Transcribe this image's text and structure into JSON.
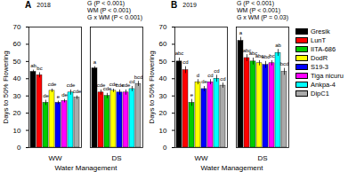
{
  "chart_data": [
    {
      "type": "bar",
      "title": "A",
      "annotations": [
        "2018",
        "G (P < 0.001)",
        "WM (P < 0.001)",
        "G x WM (P < 0.001)"
      ],
      "x_label": "Water Management",
      "y_label": "Days to 50% Flowering",
      "categories": [
        "WW",
        "DS"
      ],
      "ylim": [
        0,
        70
      ],
      "yticks": [
        0,
        10,
        20,
        30,
        40,
        50,
        60,
        70
      ],
      "series": [
        {
          "name": "Gresik",
          "color": "#000000",
          "values": [
            44,
            46
          ],
          "errors": [
            1,
            1
          ],
          "letters": [
            "ab",
            "a"
          ]
        },
        {
          "name": "LunT",
          "color": "#ff0000",
          "values": [
            42,
            32
          ],
          "errors": [
            1.5,
            1.5
          ],
          "letters": [
            "bc",
            "cde"
          ]
        },
        {
          "name": "IITA-686",
          "color": "#00cc00",
          "values": [
            26,
            30
          ],
          "errors": [
            1.5,
            1.5
          ],
          "letters": [
            "de",
            "cde"
          ]
        },
        {
          "name": "DodR",
          "color": "#ffff00",
          "values": [
            33,
            33
          ],
          "errors": [
            1,
            1
          ],
          "letters": [
            "cde",
            "cde"
          ]
        },
        {
          "name": "S19-3",
          "color": "#0000ff",
          "values": [
            26,
            32
          ],
          "errors": [
            1,
            1.5
          ],
          "letters": [
            "e",
            "cde"
          ]
        },
        {
          "name": "Tiga nicuru",
          "color": "#ff00ff",
          "values": [
            27,
            32
          ],
          "errors": [
            1,
            1.5
          ],
          "letters": [
            "de",
            "cde"
          ]
        },
        {
          "name": "Ankpa-4",
          "color": "#00ffff",
          "values": [
            32,
            34
          ],
          "errors": [
            1.5,
            1.5
          ],
          "letters": [
            "cde",
            "cd"
          ]
        },
        {
          "name": "DipC1",
          "color": "#aaaaaa",
          "values": [
            29,
            37
          ],
          "errors": [
            1,
            1.5
          ],
          "letters": [
            "cde",
            "bcd"
          ]
        }
      ]
    },
    {
      "type": "bar",
      "title": "B",
      "annotations": [
        "2019",
        "G (P < 0.001)",
        "WM (P < 0.001)",
        "G x WM (P = 0.03)"
      ],
      "x_label": "Water Management",
      "y_label": "Days to 50% Flowering",
      "categories": [
        "WW",
        "DS"
      ],
      "ylim": [
        0,
        70
      ],
      "yticks": [
        0,
        10,
        20,
        30,
        40,
        50,
        60,
        70
      ],
      "legend": "right",
      "series": [
        {
          "name": "Gresik",
          "color": "#000000",
          "values": [
            50,
            62
          ],
          "errors": [
            2,
            2
          ],
          "letters": [
            "abc",
            "a"
          ]
        },
        {
          "name": "LunT",
          "color": "#ff0000",
          "values": [
            45,
            52
          ],
          "errors": [
            2,
            2
          ],
          "letters": [
            "cd",
            "abc"
          ]
        },
        {
          "name": "IITA-686",
          "color": "#00cc00",
          "values": [
            26,
            50
          ],
          "errors": [
            2,
            2
          ],
          "letters": [
            "e",
            "abc"
          ]
        },
        {
          "name": "DodR",
          "color": "#ffff00",
          "values": [
            38,
            49
          ],
          "errors": [
            1.5,
            1.5
          ],
          "letters": [
            "d",
            "abc"
          ]
        },
        {
          "name": "S19-3",
          "color": "#0000ff",
          "values": [
            34,
            48
          ],
          "errors": [
            1.5,
            2
          ],
          "letters": [
            "de",
            "abc"
          ]
        },
        {
          "name": "Tiga nicuru",
          "color": "#ff00ff",
          "values": [
            38,
            49
          ],
          "errors": [
            1.5,
            1.5
          ],
          "letters": [
            "cd",
            "bc"
          ]
        },
        {
          "name": "Ankpa-4",
          "color": "#00ffff",
          "values": [
            40,
            55
          ],
          "errors": [
            2,
            2
          ],
          "letters": [
            "cd",
            "ab"
          ]
        },
        {
          "name": "DipC1",
          "color": "#aaaaaa",
          "values": [
            36,
            44
          ],
          "errors": [
            1.5,
            2
          ],
          "letters": [
            "cd",
            "bcd"
          ]
        }
      ]
    }
  ]
}
